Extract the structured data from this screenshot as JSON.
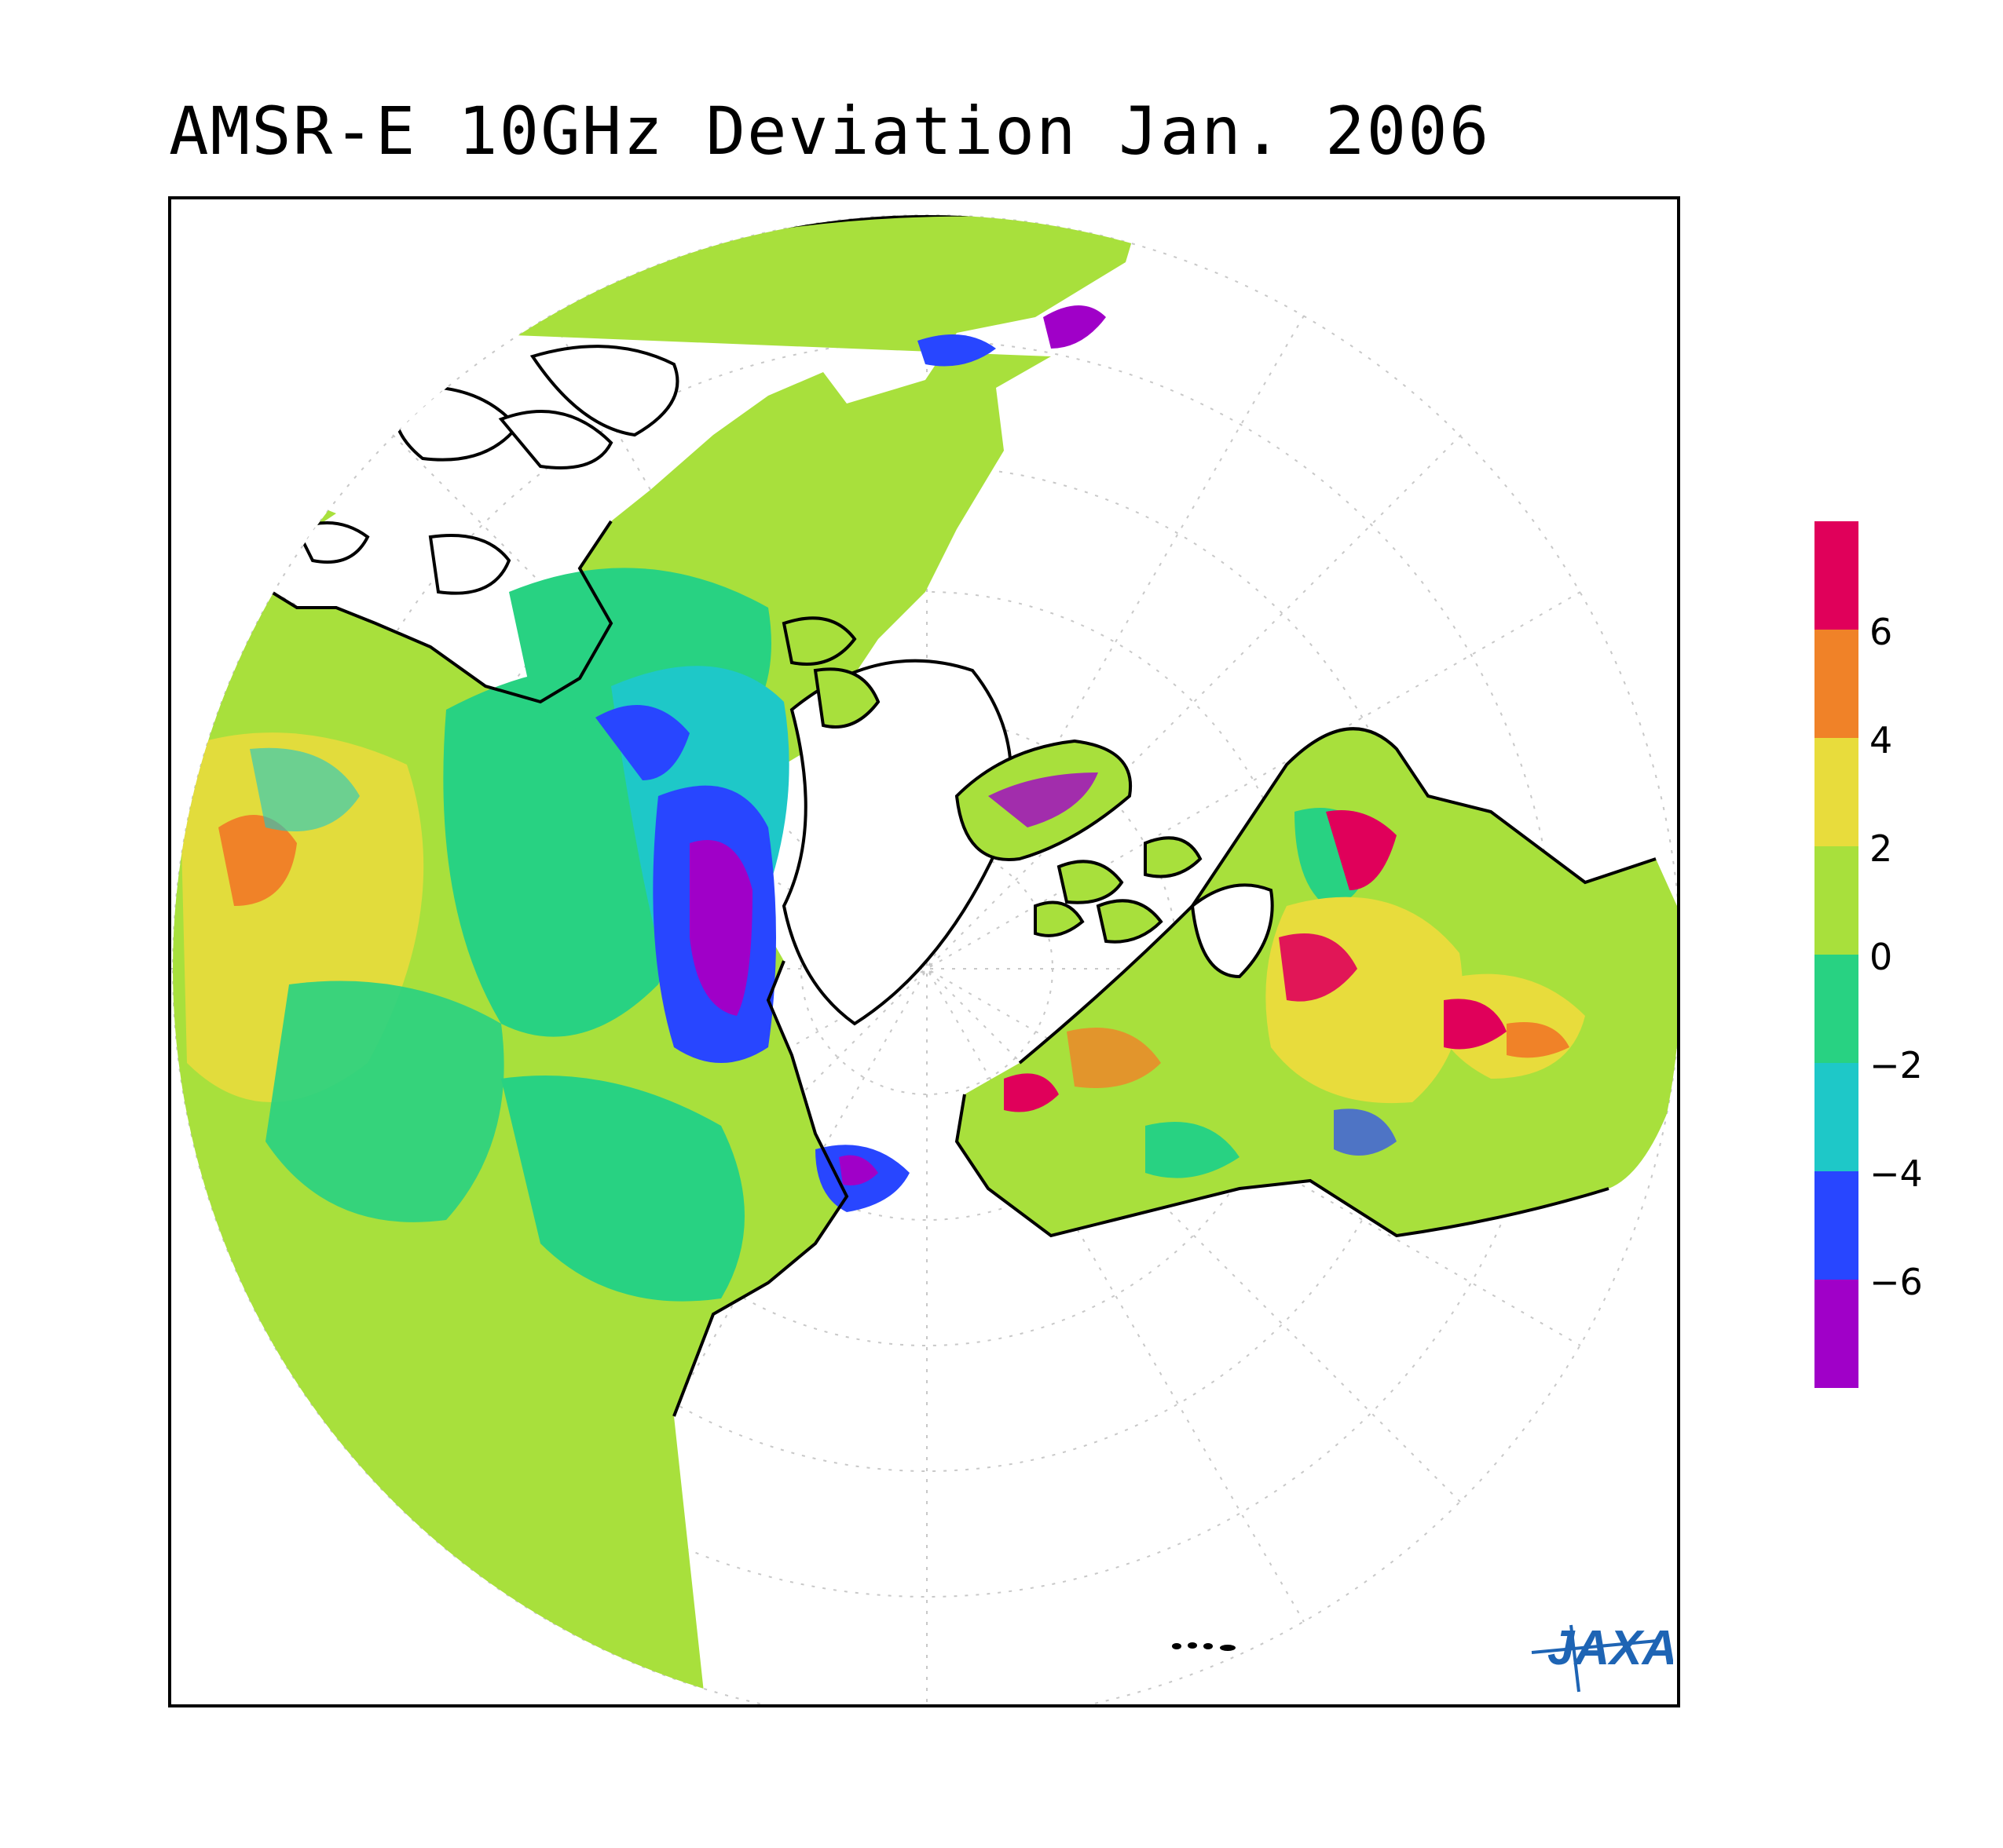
{
  "title": "AMSR-E 10GHz Deviation Jan. 2006",
  "colorbar": {
    "bins": [
      {
        "color": "#e0005a",
        "range": [
          6,
          8
        ]
      },
      {
        "color": "#f08228",
        "range": [
          4,
          6
        ]
      },
      {
        "color": "#e8dc3c",
        "range": [
          2,
          4
        ]
      },
      {
        "color": "#a8e03c",
        "range": [
          0,
          2
        ]
      },
      {
        "color": "#28d282",
        "range": [
          -2,
          0
        ]
      },
      {
        "color": "#1ec8c8",
        "range": [
          -4,
          -2
        ]
      },
      {
        "color": "#2846ff",
        "range": [
          -6,
          -4
        ]
      },
      {
        "color": "#a000c8",
        "range": [
          -8,
          -6
        ]
      }
    ],
    "tick_labels": [
      "6",
      "4",
      "2",
      "0",
      "−2",
      "−4",
      "−6"
    ]
  },
  "logo": {
    "text": "JAXA",
    "color": "#1e64b4"
  },
  "colors": {
    "coast": "#000000",
    "grid": "#c8c8c8"
  }
}
